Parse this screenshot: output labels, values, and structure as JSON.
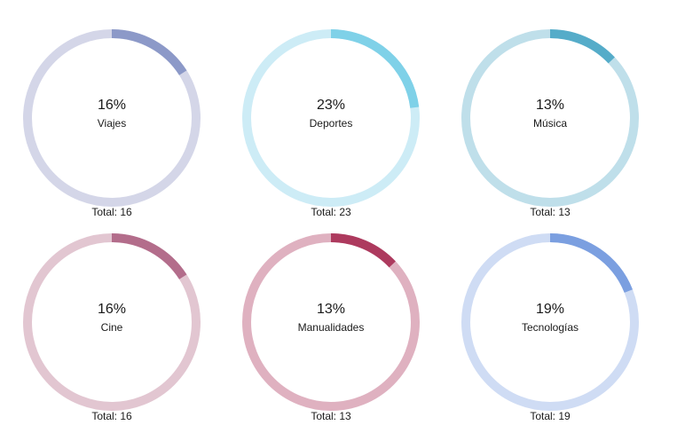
{
  "chart_data": [
    {
      "type": "pie",
      "label": "Viajes",
      "percent_label": "16%",
      "value": 16,
      "total_label": "Total: 16",
      "base_color": "#d4d6e8",
      "fill_color": "#8c99c8"
    },
    {
      "type": "pie",
      "label": "Deportes",
      "percent_label": "23%",
      "value": 23,
      "total_label": "Total: 23",
      "base_color": "#cdecf6",
      "fill_color": "#7fd1e8"
    },
    {
      "type": "pie",
      "label": "Música",
      "percent_label": "13%",
      "value": 13,
      "total_label": "Total: 13",
      "base_color": "#bfdfea",
      "fill_color": "#55acc9"
    },
    {
      "type": "pie",
      "label": "Cine",
      "percent_label": "16%",
      "value": 16,
      "total_label": "Total: 16",
      "base_color": "#e2c6d1",
      "fill_color": "#b36d8b"
    },
    {
      "type": "pie",
      "label": "Manualidades",
      "percent_label": "13%",
      "value": 13,
      "total_label": "Total: 13",
      "base_color": "#dfb1c0",
      "fill_color": "#ad3a5e"
    },
    {
      "type": "pie",
      "label": "Tecnologías",
      "percent_label": "19%",
      "value": 19,
      "total_label": "Total: 19",
      "base_color": "#cfdcf4",
      "fill_color": "#7b9fe0"
    }
  ]
}
